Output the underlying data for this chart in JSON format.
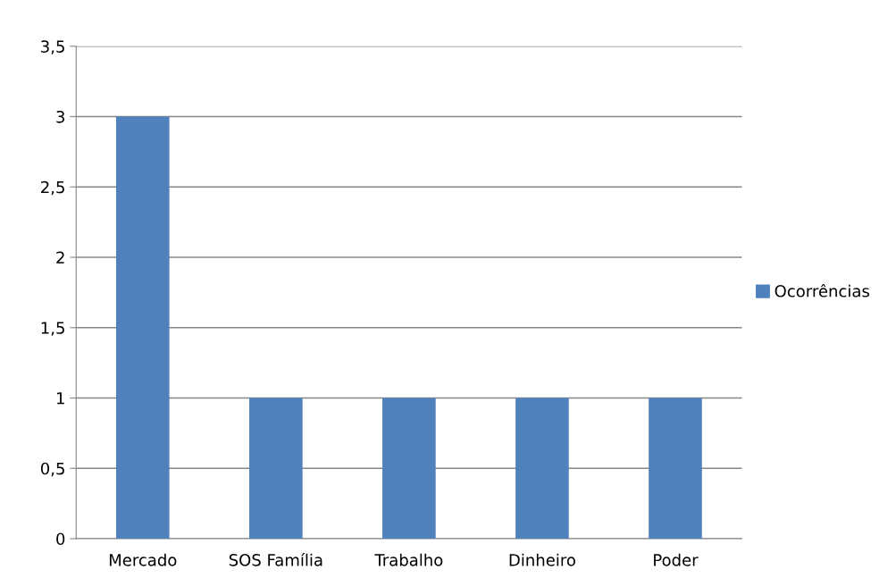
{
  "chart_data": {
    "type": "bar",
    "categories": [
      "Mercado",
      "SOS Família",
      "Trabalho",
      "Dinheiro",
      "Poder"
    ],
    "series": [
      {
        "name": "Ocorrências",
        "color": "#4f81bd",
        "values": [
          3,
          1,
          1,
          1,
          1
        ]
      }
    ],
    "ylim": [
      0,
      3.5
    ],
    "yticks": [
      0,
      {
        "value": 0.5,
        "label": "0,5"
      },
      1,
      {
        "value": 1.5,
        "label": "1,5"
      },
      2,
      {
        "value": 2.5,
        "label": "2,5"
      },
      3,
      {
        "value": 3.5,
        "label": "3,5"
      }
    ],
    "grid": "y",
    "legend": "right"
  }
}
